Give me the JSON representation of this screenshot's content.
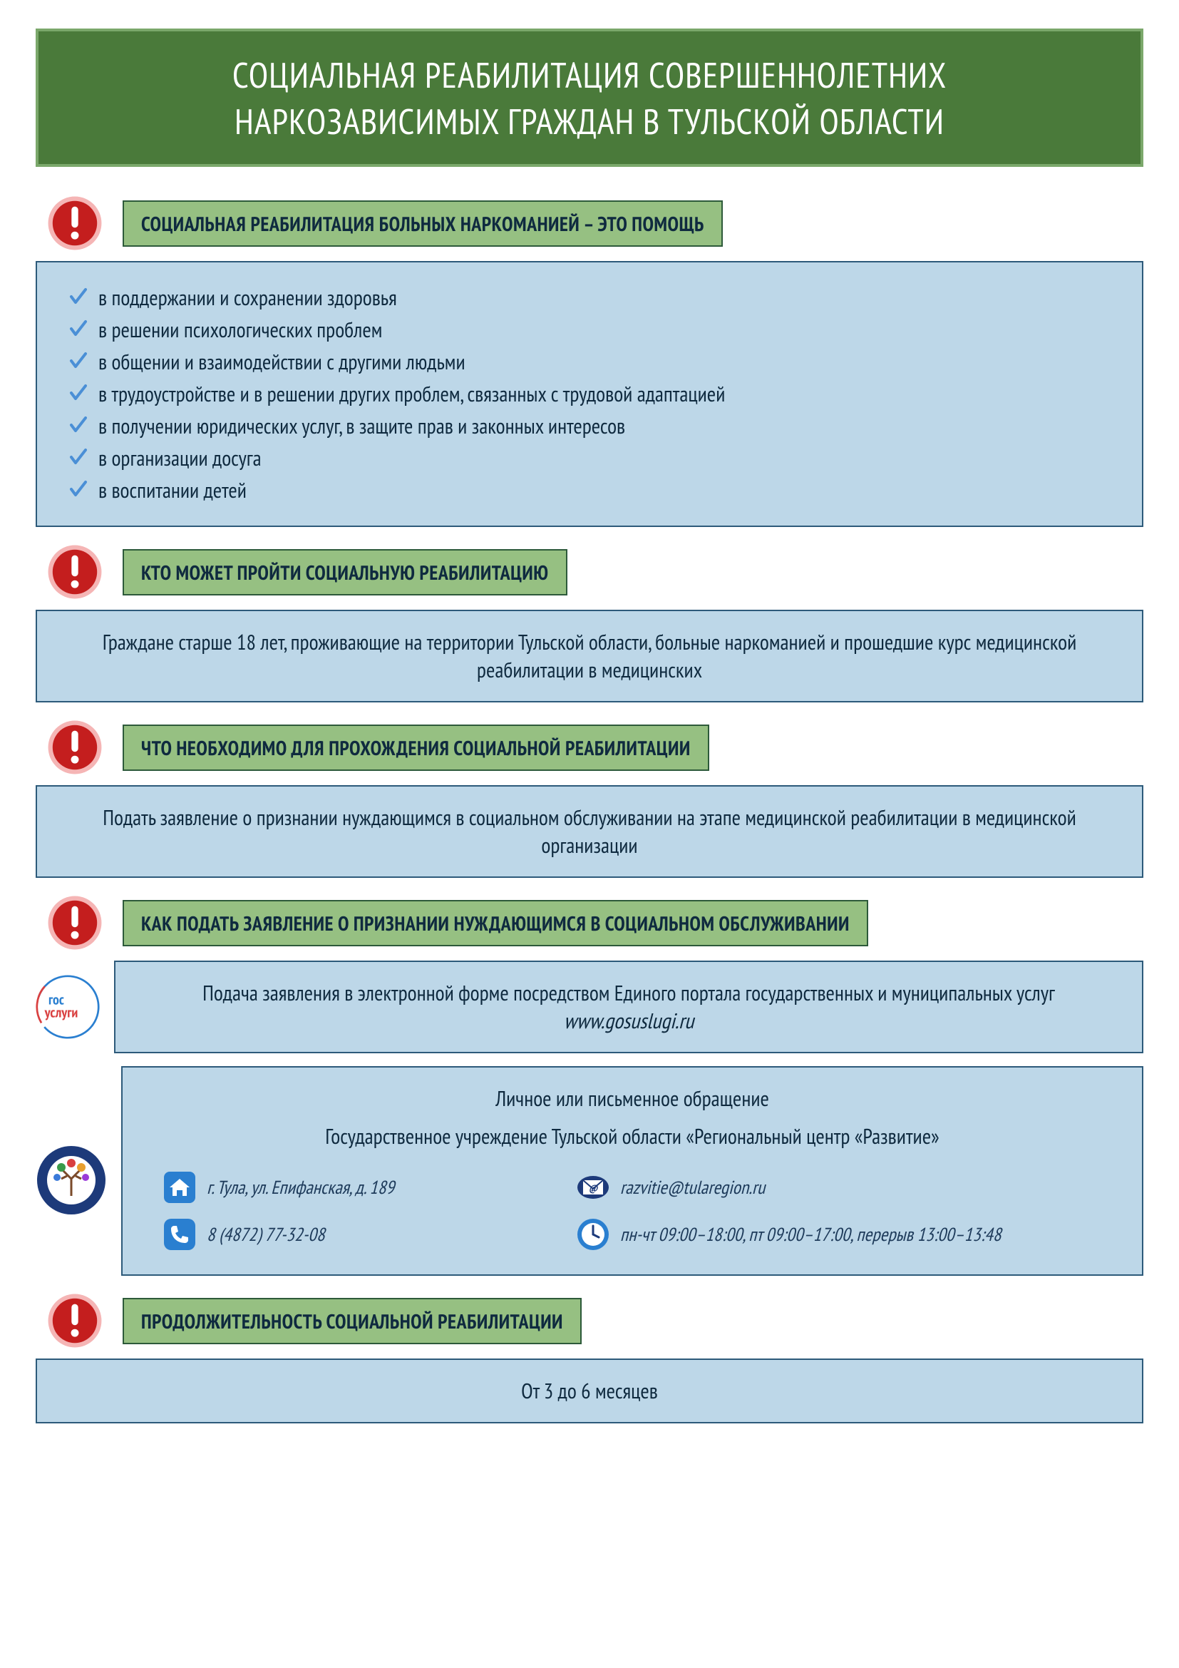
{
  "colors": {
    "title_bg": "#4a7a3a",
    "title_border": "#7ba86b",
    "title_text": "#ffffff",
    "header_label_bg": "#96c082",
    "header_label_border": "#2d5a3a",
    "content_bg": "#bdd7e8",
    "content_border": "#2d5a7a",
    "body_text": "#0f2a3f",
    "check_color": "#4a8fd6",
    "exclaim_red": "#c41e1e",
    "exclaim_ring": "#f5b5b5",
    "icon_blue": "#2a7fd0",
    "contact_italic": "#1d3a5a"
  },
  "title": {
    "line1": "СОЦИАЛЬНАЯ РЕАБИЛИТАЦИЯ СОВЕРШЕННОЛЕТНИХ",
    "line2": "НАРКОЗАВИСИМЫХ ГРАЖДАН В ТУЛЬСКОЙ ОБЛАСТИ"
  },
  "section1": {
    "header": "СОЦИАЛЬНАЯ РЕАБИЛИТАЦИЯ БОЛЬНЫХ НАРКОМАНИЕЙ – ЭТО ПОМОЩЬ",
    "items": [
      "в поддержании и сохранении здоровья",
      "в решении психологических проблем",
      "в общении и взаимодействии с другими людьми",
      "в трудоустройстве и в решении других проблем, связанных с трудовой адаптацией",
      "в получении юридических услуг, в защите прав и законных интересов",
      "в организации досуга",
      "в воспитании детей"
    ]
  },
  "section2": {
    "header": "КТО МОЖЕТ ПРОЙТИ СОЦИАЛЬНУЮ РЕАБИЛИТАЦИЮ",
    "body": "Граждане старше 18 лет, проживающие на территории Тульской области, больные наркоманией и прошедшие курс медицинской реабилитации в медицинских"
  },
  "section3": {
    "header": "ЧТО НЕОБХОДИМО ДЛЯ ПРОХОЖДЕНИЯ СОЦИАЛЬНОЙ РЕАБИЛИТАЦИИ",
    "body": "Подать заявление о признании нуждающимся в социальном обслуживании на этапе медицинской реабилитации в медицинской организации"
  },
  "section4": {
    "header": "КАК ПОДАТЬ ЗАЯВЛЕНИЕ О ПРИЗНАНИИ НУЖДАЮЩИМСЯ В СОЦИАЛЬНОМ ОБСЛУЖИВАНИИ",
    "gosuslugi": {
      "text_pre": "Подача заявления в электронной форме посредством Единого портала государственных и муниципальных услуг ",
      "url": "www.gosuslugi.ru",
      "logo_line1": "гос",
      "logo_line2": "услуги"
    },
    "contact": {
      "title": "Личное или письменное обращение",
      "org": "Государственное учреждение Тульской области «Региональный центр «Развитие»",
      "address": "г. Тула, ул. Епифанская, д. 189",
      "email": "razvitie@tularegion.ru",
      "phone": "8 (4872) 77-32-08",
      "hours": "пн-чт 09:00–18:00, пт 09:00–17:00, перерыв 13:00–13:48"
    }
  },
  "section5": {
    "header": "ПРОДОЛЖИТЕЛЬНОСТЬ СОЦИАЛЬНОЙ РЕАБИЛИТАЦИИ",
    "body": "От 3 до 6 месяцев"
  }
}
